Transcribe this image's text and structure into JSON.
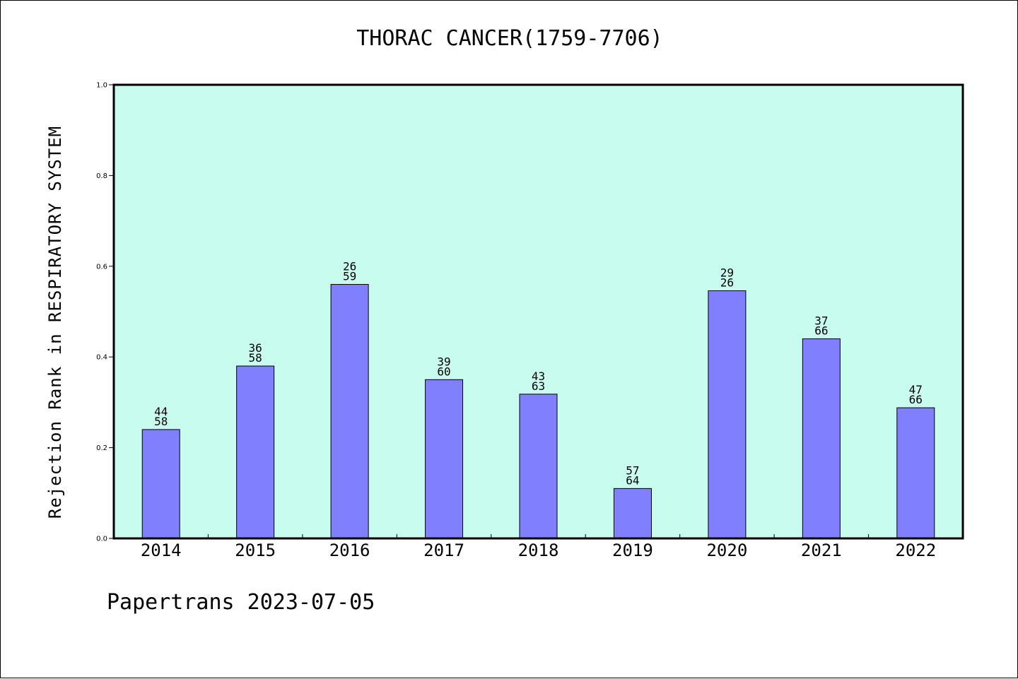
{
  "chart_data": {
    "type": "bar",
    "title": "THORAC CANCER(1759-7706)",
    "ylabel": "Rejection Rank in RESPIRATORY SYSTEM",
    "xlabel": "",
    "categories": [
      "2014",
      "2015",
      "2016",
      "2017",
      "2018",
      "2019",
      "2020",
      "2021",
      "2022"
    ],
    "values": [
      0.24,
      0.38,
      0.56,
      0.35,
      0.318,
      0.11,
      0.546,
      0.44,
      0.288
    ],
    "bar_labels_top": [
      "44",
      "36",
      "26",
      "39",
      "43",
      "57",
      "29",
      "37",
      "47"
    ],
    "bar_labels_bottom": [
      "58",
      "58",
      "59",
      "60",
      "63",
      "64",
      "26",
      "66",
      "66"
    ],
    "ylim": [
      0,
      1.0
    ],
    "yticks": [
      "0.0",
      "0.2",
      "0.4",
      "0.6",
      "0.8",
      "1.0"
    ],
    "ytick_values": [
      0,
      0.2,
      0.4,
      0.6,
      0.8,
      1.0
    ],
    "grid": false,
    "colors": {
      "plot_background": "#c8fcee",
      "bar_fill": "#8080ff",
      "bar_edge": "#000000"
    }
  },
  "footer": "Papertrans 2023-07-05"
}
